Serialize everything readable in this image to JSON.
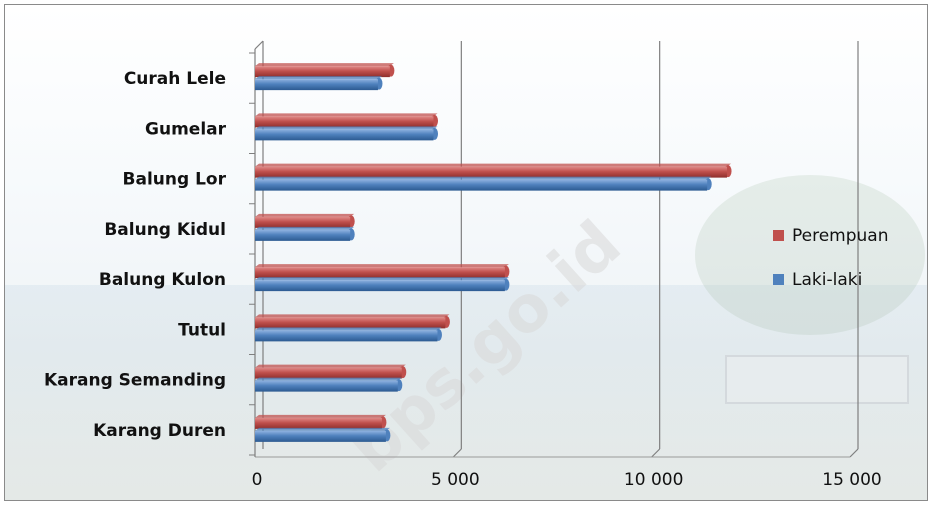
{
  "watermark_text": "bps.go.id",
  "chart_data": {
    "type": "bar",
    "orientation": "horizontal",
    "categories": [
      "Curah Lele",
      "Gumelar",
      "Balung Lor",
      "Balung Kidul",
      "Balung Kulon",
      "Tutul",
      "Karang Semanding",
      "Karang Duren"
    ],
    "series": [
      {
        "name": "Perempuan",
        "color": "#c0504d",
        "values": [
          3400,
          4500,
          11900,
          2400,
          6300,
          4800,
          3700,
          3200
        ]
      },
      {
        "name": "Laki-laki",
        "color": "#4f81bd",
        "values": [
          3100,
          4500,
          11400,
          2400,
          6300,
          4600,
          3600,
          3300
        ]
      }
    ],
    "xlim": [
      0,
      15000
    ],
    "xticks": [
      0,
      5000,
      10000,
      15000
    ],
    "xtick_labels": [
      "0",
      "5 000",
      "10 000",
      "15 000"
    ],
    "title": "",
    "xlabel": "",
    "ylabel": "",
    "grid": "vertical",
    "legend_position": "right"
  }
}
